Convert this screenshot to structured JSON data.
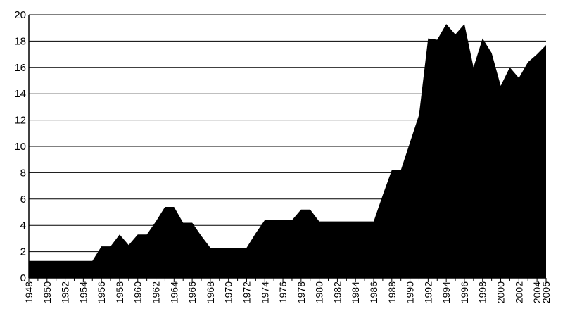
{
  "chart_data": {
    "type": "area",
    "title": "",
    "xlabel": "",
    "ylabel": "",
    "xlim": [
      1948,
      2005
    ],
    "ylim": [
      0,
      20
    ],
    "grid": true,
    "yticks": [
      "0",
      "2",
      "4",
      "6",
      "8",
      "10",
      "12",
      "14",
      "16",
      "18",
      "20"
    ],
    "xticks": [
      "1948",
      "1950",
      "1952",
      "1954",
      "1956",
      "1958",
      "1960",
      "1962",
      "1964",
      "1966",
      "1968",
      "1970",
      "1972",
      "1974",
      "1976",
      "1978",
      "1980",
      "1982",
      "1984",
      "1986",
      "1988",
      "1990",
      "1992",
      "1994",
      "1996",
      "1998",
      "2000",
      "2002",
      "2004",
      "2005"
    ],
    "fill_color": "#000000",
    "x": [
      1948,
      1949,
      1950,
      1951,
      1952,
      1953,
      1954,
      1955,
      1956,
      1957,
      1958,
      1959,
      1960,
      1961,
      1962,
      1963,
      1964,
      1965,
      1966,
      1967,
      1968,
      1969,
      1970,
      1971,
      1972,
      1973,
      1974,
      1975,
      1976,
      1977,
      1978,
      1979,
      1980,
      1981,
      1982,
      1983,
      1984,
      1985,
      1986,
      1987,
      1988,
      1989,
      1990,
      1991,
      1992,
      1993,
      1994,
      1995,
      1996,
      1997,
      1998,
      1999,
      2000,
      2001,
      2002,
      2003,
      2004,
      2005
    ],
    "values": [
      1.3,
      1.3,
      1.3,
      1.3,
      1.3,
      1.3,
      1.3,
      1.3,
      2.4,
      2.4,
      3.3,
      2.5,
      3.3,
      3.3,
      4.3,
      5.4,
      5.4,
      4.2,
      4.2,
      3.2,
      2.3,
      2.3,
      2.3,
      2.3,
      2.3,
      3.4,
      4.4,
      4.4,
      4.4,
      4.4,
      5.2,
      5.2,
      4.3,
      4.3,
      4.3,
      4.3,
      4.3,
      4.3,
      4.3,
      6.3,
      8.2,
      8.2,
      10.3,
      12.4,
      18.2,
      18.1,
      19.3,
      18.5,
      19.3,
      16.0,
      18.2,
      17.1,
      14.6,
      16.0,
      15.2,
      16.4,
      17.0,
      17.7
    ]
  }
}
